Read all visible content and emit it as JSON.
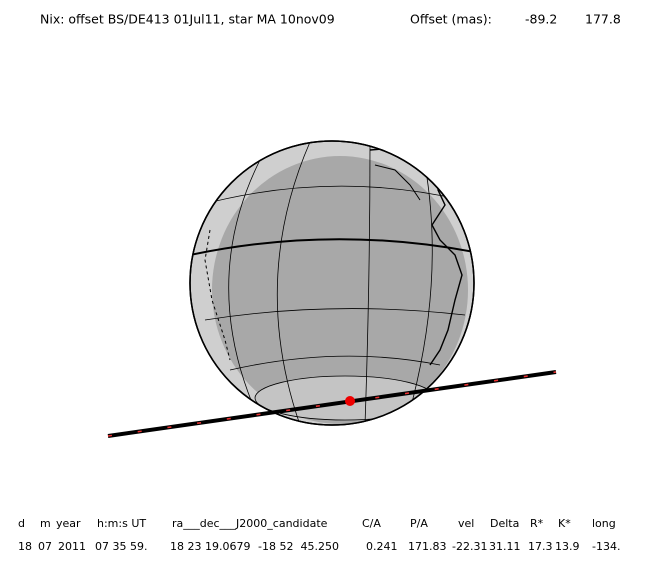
{
  "header": {
    "title": "Nix: offset BS/DE413 01Jul11, star MA 10nov09",
    "offset_label": "Offset (mas):",
    "offset_x": "-89.2",
    "offset_y": "177.8"
  },
  "table": {
    "header": [
      "d",
      "m",
      "year",
      "h:m:s UT",
      "ra___dec___J2000_candidate",
      "C/A",
      "P/A",
      "vel",
      "Delta",
      "R*",
      "K*",
      "long"
    ],
    "rows": [
      [
        "18",
        "07",
        "2011",
        "07 35 59.",
        "18 23 19.0679",
        "-18 52  45.250",
        "0.241",
        "171.83",
        "-22.31",
        "31.11",
        "17.3",
        "13.9",
        "-134."
      ]
    ]
  }
}
